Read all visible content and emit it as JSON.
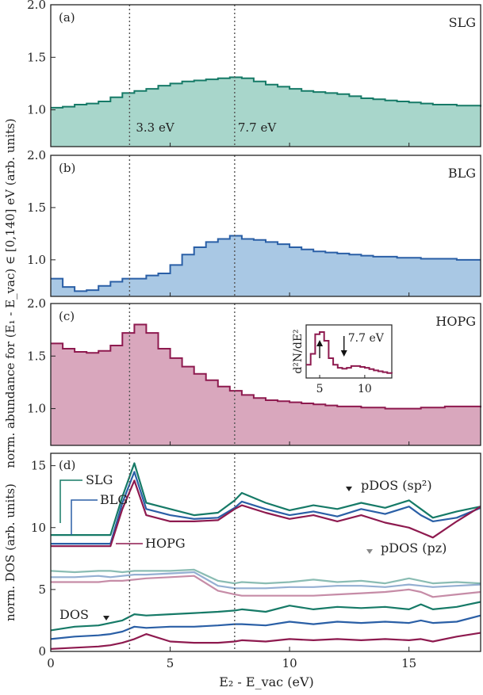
{
  "figure": {
    "shared_xlabel": "E₂ - E_vac (eV)",
    "shared_ylabel_top": "norm. abundance for (E₁ - E_vac) ∈ [0,140] eV (arb. units)",
    "x_ticks": [
      "0",
      "5",
      "10",
      "15"
    ],
    "reference_lines_x": [
      3.3,
      7.7
    ],
    "reference_labels": [
      "3.3 eV",
      "7.7 eV"
    ]
  },
  "colors": {
    "slg": "#167a67",
    "slg_fill": "#a8d6cb",
    "blg": "#2a5fa6",
    "blg_fill": "#a9c8e4",
    "hopg": "#8e1a4f",
    "hopg_fill": "#d9a7bd"
  },
  "chart_data": [
    {
      "type": "area",
      "panel": "(a)",
      "title": "SLG",
      "xlim": [
        0,
        18
      ],
      "ylim": [
        0.65,
        2.0
      ],
      "y_ticks": [
        "1.0",
        "1.5",
        "2.0"
      ],
      "x": [
        0,
        0.5,
        1,
        1.5,
        2,
        2.5,
        3,
        3.5,
        4,
        4.5,
        5,
        5.5,
        6,
        6.5,
        7,
        7.5,
        8,
        8.5,
        9,
        9.5,
        10,
        10.5,
        11,
        11.5,
        12,
        12.5,
        13,
        13.5,
        14,
        14.5,
        15,
        15.5,
        16,
        16.5,
        17,
        17.5,
        18
      ],
      "values": [
        1.02,
        1.03,
        1.05,
        1.06,
        1.08,
        1.12,
        1.16,
        1.18,
        1.2,
        1.23,
        1.25,
        1.27,
        1.28,
        1.29,
        1.3,
        1.31,
        1.3,
        1.27,
        1.24,
        1.22,
        1.2,
        1.18,
        1.17,
        1.16,
        1.15,
        1.13,
        1.11,
        1.1,
        1.09,
        1.08,
        1.07,
        1.06,
        1.05,
        1.05,
        1.04,
        1.04,
        1.03
      ]
    },
    {
      "type": "area",
      "panel": "(b)",
      "title": "BLG",
      "xlim": [
        0,
        18
      ],
      "ylim": [
        0.65,
        2.0
      ],
      "y_ticks": [
        "1.0",
        "1.5",
        "2.0"
      ],
      "x": [
        0,
        0.5,
        1,
        1.5,
        2,
        2.5,
        3,
        3.5,
        4,
        4.5,
        5,
        5.5,
        6,
        6.5,
        7,
        7.5,
        8,
        8.5,
        9,
        9.5,
        10,
        10.5,
        11,
        11.5,
        12,
        12.5,
        13,
        13.5,
        14,
        14.5,
        15,
        15.5,
        16,
        16.5,
        17,
        17.5,
        18
      ],
      "values": [
        0.82,
        0.74,
        0.7,
        0.71,
        0.75,
        0.79,
        0.82,
        0.82,
        0.85,
        0.87,
        0.95,
        1.05,
        1.12,
        1.17,
        1.2,
        1.23,
        1.2,
        1.19,
        1.17,
        1.15,
        1.12,
        1.1,
        1.08,
        1.07,
        1.06,
        1.05,
        1.04,
        1.03,
        1.03,
        1.02,
        1.02,
        1.01,
        1.01,
        1.01,
        1.0,
        1.0,
        1.0
      ]
    },
    {
      "type": "area",
      "panel": "(c)",
      "title": "HOPG",
      "xlim": [
        0,
        18
      ],
      "ylim": [
        0.65,
        2.0
      ],
      "y_ticks": [
        "1.0",
        "1.5",
        "2.0"
      ],
      "x": [
        0,
        0.5,
        1,
        1.5,
        2,
        2.5,
        3,
        3.5,
        4,
        4.5,
        5,
        5.5,
        6,
        6.5,
        7,
        7.5,
        8,
        8.5,
        9,
        9.5,
        10,
        10.5,
        11,
        11.5,
        12,
        12.5,
        13,
        13.5,
        14,
        14.5,
        15,
        15.5,
        16,
        16.5,
        17,
        17.5,
        18
      ],
      "values": [
        1.62,
        1.57,
        1.54,
        1.53,
        1.55,
        1.6,
        1.72,
        1.8,
        1.72,
        1.57,
        1.48,
        1.4,
        1.33,
        1.27,
        1.21,
        1.17,
        1.13,
        1.1,
        1.08,
        1.07,
        1.06,
        1.05,
        1.04,
        1.03,
        1.02,
        1.02,
        1.01,
        1.01,
        1.0,
        1.0,
        1.0,
        1.01,
        1.01,
        1.02,
        1.02,
        1.02,
        1.01
      ]
    },
    {
      "type": "line",
      "panel": "(c) inset",
      "ylabel": "d²N/dE²",
      "xlim": [
        3.5,
        13
      ],
      "x_ticks": [
        "5",
        "10"
      ],
      "annotation": "7.7 eV",
      "x": [
        3.5,
        4,
        4.5,
        5,
        5.5,
        6,
        6.5,
        7,
        7.5,
        8,
        8.5,
        9,
        9.5,
        10,
        10.5,
        11,
        11.5,
        12,
        12.5,
        13
      ],
      "values": [
        0.25,
        0.5,
        0.95,
        1.0,
        0.8,
        0.4,
        0.25,
        0.18,
        0.16,
        0.18,
        0.22,
        0.22,
        0.2,
        0.18,
        0.15,
        0.12,
        0.1,
        0.08,
        0.06,
        0.05
      ]
    },
    {
      "type": "line",
      "panel": "(d)",
      "xlabel": "E₂ - E_vac (eV)",
      "ylabel": "norm. DOS (arb. units)",
      "xlim": [
        0,
        18
      ],
      "ylim": [
        0,
        16
      ],
      "y_ticks": [
        "0",
        "5",
        "10",
        "15"
      ],
      "labels": [
        "SLG",
        "BLG",
        "HOPG",
        "pDOS (sp²)",
        "pDOS (pz)",
        "DOS"
      ],
      "x": [
        0,
        1,
        2,
        2.5,
        3,
        3.5,
        4,
        5,
        6,
        7,
        7.7,
        8,
        9,
        10,
        11,
        12,
        13,
        14,
        15,
        15.5,
        16,
        17,
        18
      ],
      "series": [
        {
          "name": "SLG",
          "values": [
            9.4,
            9.4,
            9.4,
            9.4,
            12.5,
            15.2,
            12.0,
            11.5,
            11.0,
            11.2,
            12.2,
            12.8,
            12.0,
            11.4,
            11.8,
            11.5,
            12.0,
            11.6,
            12.2,
            11.5,
            10.8,
            11.3,
            11.7
          ]
        },
        {
          "name": "BLG",
          "values": [
            8.7,
            8.7,
            8.7,
            8.7,
            12.0,
            14.5,
            11.5,
            11.0,
            10.7,
            10.8,
            11.6,
            12.1,
            11.5,
            11.0,
            11.3,
            10.9,
            11.5,
            11.1,
            11.7,
            11.0,
            10.5,
            10.8,
            11.6
          ]
        },
        {
          "name": "HOPG",
          "values": [
            8.5,
            8.5,
            8.5,
            8.5,
            11.5,
            13.8,
            11.0,
            10.5,
            10.5,
            10.6,
            11.5,
            11.8,
            11.2,
            10.7,
            11.0,
            10.5,
            11.0,
            10.4,
            10.0,
            9.6,
            9.2,
            10.5,
            11.7
          ]
        },
        {
          "name": "SLG pDOS (pz)",
          "values": [
            6.5,
            6.4,
            6.5,
            6.5,
            6.4,
            6.5,
            6.5,
            6.5,
            6.6,
            5.7,
            5.5,
            5.6,
            5.5,
            5.6,
            5.8,
            5.6,
            5.7,
            5.5,
            5.9,
            5.7,
            5.5,
            5.6,
            5.5
          ]
        },
        {
          "name": "BLG pDOS (pz)",
          "values": [
            6.0,
            6.0,
            6.1,
            6.0,
            6.1,
            6.2,
            6.2,
            6.3,
            6.4,
            5.3,
            5.1,
            5.1,
            5.1,
            5.2,
            5.2,
            5.3,
            5.3,
            5.2,
            5.4,
            5.3,
            5.2,
            5.3,
            5.4
          ]
        },
        {
          "name": "HOPG pDOS (pz)",
          "values": [
            5.6,
            5.6,
            5.6,
            5.7,
            5.7,
            5.8,
            5.9,
            6.0,
            6.1,
            4.9,
            4.6,
            4.5,
            4.5,
            4.5,
            4.5,
            4.6,
            4.7,
            4.8,
            5.0,
            4.8,
            4.4,
            4.6,
            4.8
          ]
        },
        {
          "name": "SLG DOS",
          "values": [
            1.7,
            2.0,
            2.1,
            2.3,
            2.5,
            3.0,
            2.9,
            3.0,
            3.1,
            3.2,
            3.3,
            3.4,
            3.2,
            3.7,
            3.4,
            3.6,
            3.5,
            3.6,
            3.4,
            3.8,
            3.4,
            3.6,
            4.0
          ]
        },
        {
          "name": "BLG DOS",
          "values": [
            1.0,
            1.2,
            1.3,
            1.4,
            1.6,
            2.0,
            1.9,
            2.0,
            2.0,
            2.1,
            2.2,
            2.2,
            2.1,
            2.4,
            2.2,
            2.4,
            2.3,
            2.4,
            2.3,
            2.5,
            2.3,
            2.4,
            2.9
          ]
        },
        {
          "name": "HOPG DOS",
          "values": [
            0.2,
            0.3,
            0.4,
            0.5,
            0.7,
            1.0,
            1.4,
            0.8,
            0.7,
            0.7,
            0.8,
            0.9,
            0.8,
            1.0,
            0.9,
            1.0,
            0.9,
            1.0,
            0.9,
            1.0,
            0.8,
            1.2,
            1.5
          ]
        }
      ]
    }
  ]
}
